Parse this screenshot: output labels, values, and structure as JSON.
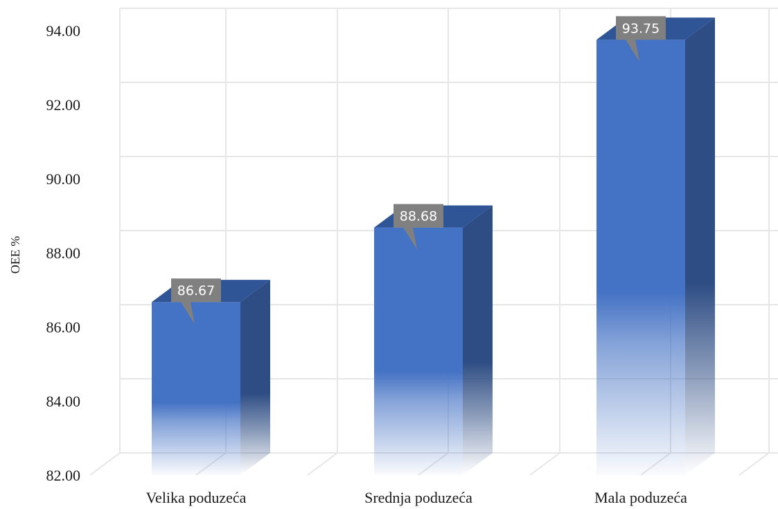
{
  "chart_data": {
    "type": "bar",
    "style": "3d-column",
    "categories": [
      "Velika poduzeća",
      "Srednja poduzeća",
      "Mala poduzeća"
    ],
    "values": [
      86.67,
      88.68,
      93.75
    ],
    "data_labels": [
      "86.67",
      "88.68",
      "93.75"
    ],
    "title": "",
    "xlabel": "",
    "ylabel": "OEE %",
    "ylim": [
      82,
      94
    ],
    "y_ticks": [
      "82.00",
      "84.00",
      "86.00",
      "88.00",
      "90.00",
      "92.00",
      "94.00"
    ],
    "grid": true,
    "legend": "none",
    "colors": {
      "bar_front": "#4472c4",
      "bar_side": "#2e4d84",
      "bar_top": "#2f5597",
      "label_box": "#808080",
      "grid": "#e6e6e6"
    }
  }
}
